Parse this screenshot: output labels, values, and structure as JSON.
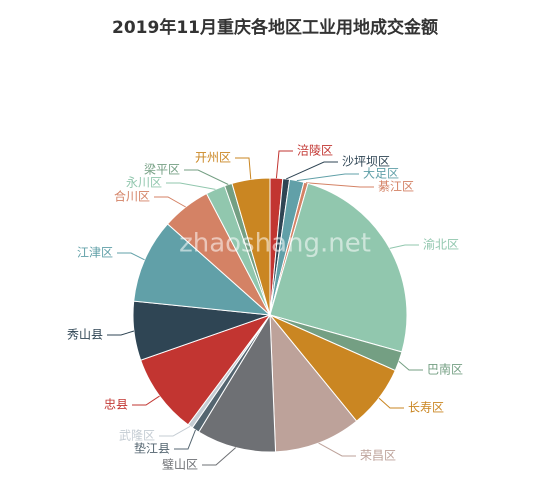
{
  "chart_data": {
    "type": "pie",
    "title": "2019年11月重庆各地区工业用地成交金额",
    "watermark": "zhaoshang.net",
    "categories": [
      "涪陵区",
      "沙坪坝区",
      "大足区",
      "綦江区",
      "渝北区",
      "巴南区",
      "长寿区",
      "荣昌区",
      "璧山区",
      "垫江县",
      "武隆区",
      "忠县",
      "秀山县",
      "江津区",
      "合川区",
      "永川区",
      "梁平区",
      "开州区"
    ],
    "values": [
      1.5,
      0.8,
      1.7,
      0.5,
      25,
      2.3,
      7.5,
      10.3,
      9.4,
      0.9,
      0.6,
      9.5,
      7,
      10,
      5.8,
      2.3,
      0.9,
      4.5
    ],
    "colors": [
      "#c23531",
      "#2f4554",
      "#61a0a8",
      "#d48265",
      "#91c7ae",
      "#749f83",
      "#ca8622",
      "#bda29a",
      "#6e7074",
      "#546570",
      "#c4ccd3",
      "#c23531",
      "#2f4554",
      "#61a0a8",
      "#d48265",
      "#91c7ae",
      "#749f83",
      "#ca8622"
    ]
  }
}
